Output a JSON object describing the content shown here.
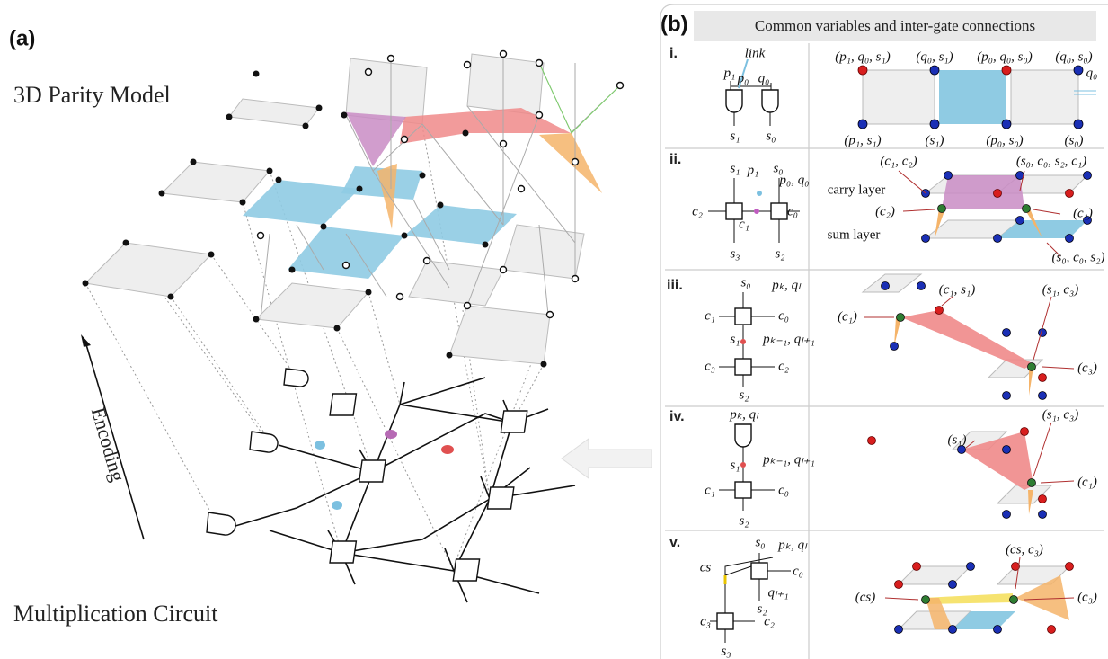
{
  "panel_a": {
    "label": "(a)",
    "top_title": "3D Parity Model",
    "arrow_label": "Encoding",
    "bottom_title": "Multiplication Circuit"
  },
  "panel_b": {
    "label": "(b)",
    "header": "Common variables and inter-gate connections",
    "rows": [
      {
        "label": "i.",
        "circuit_labels": [
          "link",
          "p₁",
          "p₀",
          "q₀",
          "s₁",
          "s₀"
        ],
        "diagram_labels": [
          "(p₁, q₀, s₁)",
          "(q₀, s₁)",
          "(p₀, q₀, s₀)",
          "(q₀, s₀)",
          "q₀",
          "(p₁, s₁)",
          "(s₁)",
          "(p₀, s₀)",
          "(s₀)"
        ]
      },
      {
        "label": "ii.",
        "circuit_labels": [
          "s₁",
          "p₁",
          "s₀",
          "p₀, q₀",
          "c₂",
          "c₁",
          "c₀",
          "s₃",
          "s₂"
        ],
        "diagram_labels": [
          "(c₁, c₂)",
          "(s₀, c₀, s₂, c₁)",
          "carry layer",
          "(c₂)",
          "(c₁)",
          "sum layer",
          "(s₀, c₀, s₂)"
        ]
      },
      {
        "label": "iii.",
        "circuit_labels": [
          "s₀",
          "pₖ, qₗ",
          "c₁",
          "c₀",
          "s₁",
          "pₖ₋₁, qₗ₊₁",
          "c₃",
          "c₂",
          "s₂"
        ],
        "diagram_labels": [
          "(c₁, s₁)",
          "(s₁, c₃)",
          "(c₁)",
          "(c₃)"
        ]
      },
      {
        "label": "iv.",
        "circuit_labels": [
          "pₖ, qₗ",
          "s₁",
          "pₖ₋₁, qₗ₊₁",
          "c₁",
          "c₀",
          "s₂"
        ],
        "diagram_labels": [
          "(s₁, c₃)",
          "(s₁)",
          "(c₁)"
        ]
      },
      {
        "label": "v.",
        "circuit_labels": [
          "s₀",
          "pₖ, qₗ",
          "cs",
          "c₀",
          "qₗ₊₁",
          "s₂",
          "c₃",
          "c₂",
          "s₃"
        ],
        "diagram_labels": [
          "(cs, c₃)",
          "(cs)",
          "(c₃)"
        ]
      }
    ]
  }
}
